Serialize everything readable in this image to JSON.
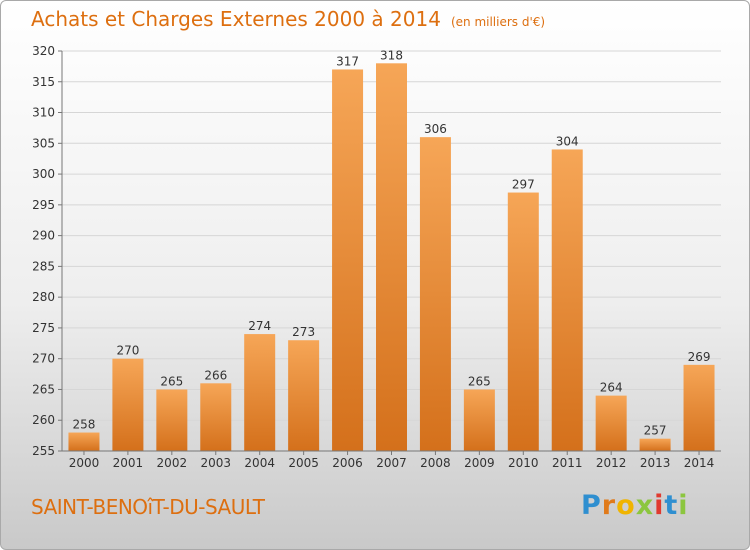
{
  "header": {
    "title": "Achats et Charges Externes 2000 à 2014",
    "subtitle": "(en milliers d'€)"
  },
  "footer": {
    "location": "SAINT-BENOîT-DU-SAULT",
    "brand_letters": [
      {
        "char": "P",
        "color": "#2f8fd0"
      },
      {
        "char": "r",
        "color": "#e07a1a"
      },
      {
        "char": "o",
        "color": "#f0b400"
      },
      {
        "char": "x",
        "color": "#8cc63f"
      },
      {
        "char": "i",
        "color": "#e03a2f"
      },
      {
        "char": "t",
        "color": "#2f8fd0"
      },
      {
        "char": "i",
        "color": "#8cc63f"
      }
    ]
  },
  "chart_data": {
    "type": "bar",
    "title": "Achats et Charges Externes 2000 à 2014",
    "subtitle": "(en milliers d'€)",
    "categories": [
      "2000",
      "2001",
      "2002",
      "2003",
      "2004",
      "2005",
      "2006",
      "2007",
      "2008",
      "2009",
      "2010",
      "2011",
      "2012",
      "2013",
      "2014"
    ],
    "values": [
      258,
      270,
      265,
      266,
      274,
      273,
      317,
      318,
      306,
      265,
      297,
      304,
      264,
      257,
      269
    ],
    "ylim": [
      255,
      320
    ],
    "yticks": [
      255,
      260,
      265,
      270,
      275,
      280,
      285,
      290,
      295,
      300,
      305,
      310,
      315,
      320
    ],
    "grid": true,
    "bar_color_light": "#f6a657",
    "bar_color_dark": "#d4701b"
  }
}
